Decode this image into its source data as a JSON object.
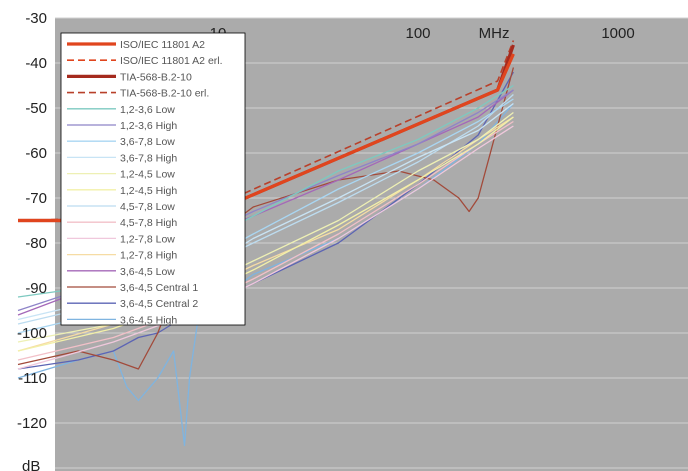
{
  "chart_data": {
    "type": "line",
    "ylabel": "dB",
    "xunit": "MHz",
    "xscale": "log",
    "xlim": [
      1,
      1000
    ],
    "ylim": [
      -130,
      -30
    ],
    "yticks": [
      "-30",
      "-40",
      "-50",
      "-60",
      "-70",
      "-80",
      "-90",
      "-100",
      "-110",
      "-120"
    ],
    "xticks": [
      "10",
      "100",
      "1000"
    ],
    "grid": true,
    "legend_position": "upper-left",
    "background_color": "#ababab",
    "series": [
      {
        "name": "ISO/IEC 11801 A2",
        "color": "#e0451e",
        "dash": false,
        "width": 3.2,
        "x": [
          1,
          7.5,
          250,
          300
        ],
        "y": [
          -75,
          -75,
          -46,
          -38
        ]
      },
      {
        "name": "ISO/IEC 11801 A2 erl.",
        "color": "#e0451e",
        "dash": true,
        "width": 1.6,
        "x": [
          1,
          7.5,
          250,
          300
        ],
        "y": [
          -75,
          -75,
          -46,
          -38
        ]
      },
      {
        "name": "TIA-568-B.2-10",
        "color": "#a52a1e",
        "dash": false,
        "width": 3.2,
        "x": [
          1,
          7.5,
          250,
          300
        ],
        "y": [
          -75,
          -75,
          -46,
          -36
        ]
      },
      {
        "name": "TIA-568-B.2-10 erl.",
        "color": "#b8402a",
        "dash": true,
        "width": 1.6,
        "x": [
          1,
          7.5,
          250,
          300
        ],
        "y": [
          -75,
          -74,
          -44,
          -35
        ]
      },
      {
        "name": "1,2-3,6 Low",
        "color": "#7dc9c0",
        "dash": false,
        "width": 1.3,
        "x": [
          1,
          3,
          7,
          15,
          40,
          100,
          200,
          300
        ],
        "y": [
          -92,
          -89,
          -82,
          -74,
          -64,
          -57,
          -50,
          -45
        ]
      },
      {
        "name": "1,2-3,6 High",
        "color": "#8e84c8",
        "dash": false,
        "width": 1.3,
        "x": [
          1,
          3,
          7,
          15,
          40,
          100,
          200,
          300
        ],
        "y": [
          -95,
          -88,
          -80,
          -73,
          -65,
          -58,
          -51,
          -46
        ]
      },
      {
        "name": "3,6-7,8 Low",
        "color": "#a9d6f2",
        "dash": false,
        "width": 1.3,
        "x": [
          1,
          3,
          7,
          15,
          40,
          100,
          200,
          300
        ],
        "y": [
          -100,
          -95,
          -86,
          -78,
          -68,
          -60,
          -53,
          -48
        ]
      },
      {
        "name": "3,6-7,8 High",
        "color": "#c8e4f5",
        "dash": false,
        "width": 1.3,
        "x": [
          1,
          3,
          7,
          15,
          40,
          100,
          200,
          300
        ],
        "y": [
          -97,
          -92,
          -88,
          -79,
          -70,
          -61,
          -55,
          -49
        ]
      },
      {
        "name": "1,2-4,5 Low",
        "color": "#eef0b4",
        "dash": false,
        "width": 1.3,
        "x": [
          1,
          3,
          7,
          15,
          40,
          100,
          200,
          300
        ],
        "y": [
          -102,
          -98,
          -91,
          -84,
          -75,
          -64,
          -57,
          -51
        ]
      },
      {
        "name": "1,2-4,5 High",
        "color": "#f2f0a8",
        "dash": false,
        "width": 1.3,
        "x": [
          1,
          3,
          7,
          15,
          40,
          100,
          200,
          300
        ],
        "y": [
          -104,
          -99,
          -93,
          -86,
          -76,
          -66,
          -58,
          -52
        ]
      },
      {
        "name": "4,5-7,8 Low",
        "color": "#bcdcf0",
        "dash": false,
        "width": 1.3,
        "x": [
          1,
          3,
          7,
          15,
          40,
          100,
          200,
          300
        ],
        "y": [
          -98,
          -93,
          -87,
          -80,
          -71,
          -62,
          -54,
          -47
        ]
      },
      {
        "name": "4,5-7,8 High",
        "color": "#f2c0c8",
        "dash": false,
        "width": 1.3,
        "x": [
          1,
          3,
          7,
          15,
          40,
          100,
          200,
          300
        ],
        "y": [
          -106,
          -101,
          -95,
          -88,
          -78,
          -67,
          -58,
          -53
        ]
      },
      {
        "name": "1,2-7,8 Low",
        "color": "#f0c8dc",
        "dash": false,
        "width": 1.3,
        "x": [
          1,
          3,
          7,
          15,
          40,
          100,
          200,
          300
        ],
        "y": [
          -108,
          -102,
          -96,
          -89,
          -79,
          -68,
          -59,
          -54
        ]
      },
      {
        "name": "1,2-7,8 High",
        "color": "#f6dca4",
        "dash": false,
        "width": 1.3,
        "x": [
          1,
          3,
          7,
          15,
          40,
          100,
          200,
          300
        ],
        "y": [
          -104,
          -98,
          -92,
          -85,
          -77,
          -66,
          -57,
          -52
        ]
      },
      {
        "name": "3,6-4,5 Low",
        "color": "#a468b8",
        "dash": false,
        "width": 1.3,
        "x": [
          1,
          3,
          7,
          15,
          40,
          100,
          200,
          300
        ],
        "y": [
          -96,
          -88,
          -80,
          -74,
          -66,
          -58,
          -52,
          -46
        ]
      },
      {
        "name": "3,6-4,5 Central 1",
        "color": "#a24a3a",
        "dash": false,
        "width": 1.3,
        "x": [
          1,
          2,
          3,
          4,
          5,
          7,
          15,
          40,
          80,
          120,
          160,
          180,
          200,
          300
        ],
        "y": [
          -107,
          -104,
          -106,
          -108,
          -100,
          -83,
          -72,
          -66,
          -64,
          -66,
          -70,
          -73,
          -70,
          -41
        ]
      },
      {
        "name": "3,6-4,5 Central 2",
        "color": "#5c64b4",
        "dash": false,
        "width": 1.3,
        "x": [
          1,
          2,
          3,
          4,
          5,
          7,
          15,
          40,
          100,
          200,
          300
        ],
        "y": [
          -108,
          -106,
          -104,
          -101,
          -100,
          -96,
          -89,
          -80,
          -67,
          -56,
          -42
        ]
      },
      {
        "name": "3,6-4,5 High",
        "color": "#7fb4e0",
        "dash": false,
        "width": 1.3,
        "x": [
          1,
          2,
          3,
          3.5,
          4,
          5,
          6,
          6.8,
          7.2,
          8,
          15,
          40,
          100,
          200,
          300
        ],
        "y": [
          -110,
          -106,
          -104,
          -112,
          -115,
          -110,
          -104,
          -125,
          -110,
          -96,
          -87,
          -79,
          -68,
          -58,
          -49
        ]
      }
    ]
  }
}
